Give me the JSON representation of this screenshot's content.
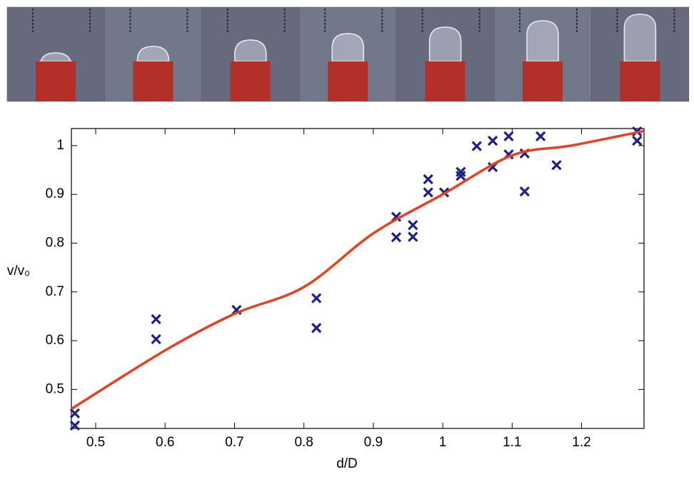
{
  "chart_data": {
    "type": "scatter",
    "xlabel": "d/D",
    "ylabel": "v/v₀",
    "xlim": [
      0.465,
      1.29
    ],
    "ylim": [
      0.42,
      1.035
    ],
    "xticks": [
      0.5,
      0.6,
      0.7,
      0.8,
      0.9,
      1,
      1.1,
      1.2
    ],
    "yticks": [
      0.5,
      0.6,
      0.7,
      0.8,
      0.9,
      1
    ],
    "series": [
      {
        "marker": "x",
        "color": "#1f1f8a",
        "x": [
          0.47,
          0.47,
          0.587,
          0.587,
          0.703,
          0.818,
          0.818,
          0.933,
          0.933,
          0.957,
          0.957,
          0.979,
          0.979,
          1.002,
          1.026,
          1.026,
          1.049,
          1.072,
          1.072,
          1.095,
          1.095,
          1.118,
          1.118,
          1.141,
          1.164,
          1.28,
          1.28
        ],
        "values": [
          0.451,
          0.426,
          0.644,
          0.603,
          0.663,
          0.687,
          0.626,
          0.854,
          0.812,
          0.837,
          0.813,
          0.931,
          0.904,
          0.904,
          0.946,
          0.938,
          0.999,
          1.01,
          0.956,
          1.019,
          0.982,
          0.984,
          0.906,
          1.019,
          0.96,
          1.029,
          1.01
        ]
      },
      {
        "marker": "line",
        "color": "#e8401c",
        "x": [
          0.465,
          0.6,
          0.7,
          0.8,
          0.9,
          1.0,
          1.1,
          1.185,
          1.29
        ],
        "values": [
          0.46,
          0.58,
          0.655,
          0.71,
          0.82,
          0.9,
          0.98,
          1.0,
          1.03
        ]
      }
    ]
  }
}
